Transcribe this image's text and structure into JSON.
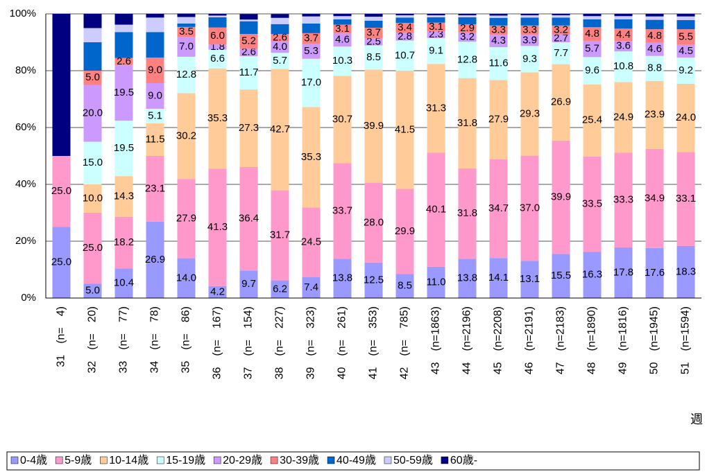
{
  "chart_data": {
    "type": "stacked_bar_100",
    "categories": [
      "31　(n=　4)",
      "32　(n=　20)",
      "33　(n=　77)",
      "34　(n=　78)",
      "35　(n=　86)",
      "36　(n=　167)",
      "37　(n=　154)",
      "38　(n=　227)",
      "39　(n=　323)",
      "40　(n=　261)",
      "41　(n=　353)",
      "42　(n=　785)",
      "43　(n=1863)",
      "44　(n=2196)",
      "45　(n=2208)",
      "46　(n=2191)",
      "47　(n=2183)",
      "48　(n=1890)",
      "49　(n=1816)",
      "50　(n=1945)",
      "51　(n=1594)"
    ],
    "x_label": "週",
    "ylim": [
      0,
      100
    ],
    "yticks": [
      {
        "value": 0,
        "label": "0%"
      },
      {
        "value": 20,
        "label": "20%"
      },
      {
        "value": 40,
        "label": "40%"
      },
      {
        "value": 60,
        "label": "60%"
      },
      {
        "value": 80,
        "label": "80%"
      },
      {
        "value": 100,
        "label": "100%"
      }
    ],
    "grid": true,
    "legend": "bottom",
    "series": [
      {
        "name": "0-4歳",
        "color": "#9999ff",
        "values": [
          25,
          5,
          10.4,
          26.9,
          14,
          4.2,
          9.7,
          6.2,
          7.4,
          13.8,
          12.5,
          8.5,
          11,
          13.8,
          14.1,
          13.1,
          15.5,
          16.3,
          17.8,
          17.6,
          18.3
        ],
        "value_labels": [
          "25.0",
          "5.0",
          "10.4",
          "26.9",
          "14.0",
          "4.2",
          "9.7",
          "6.2",
          "7.4",
          "13.8",
          "12.5",
          "8.5",
          "11.0",
          "13.8",
          "14.1",
          "13.1",
          "15.5",
          "16.3",
          "17.8",
          "17.6",
          "18.3"
        ]
      },
      {
        "name": "5-9歳",
        "color": "#ff99cc",
        "values": [
          25,
          25,
          18.2,
          23.1,
          27.9,
          41.3,
          36.4,
          31.7,
          24.5,
          33.7,
          28,
          29.9,
          40.1,
          31.8,
          34.7,
          37,
          39.9,
          33.5,
          33.3,
          34.9,
          33.1
        ],
        "value_labels": [
          "25.0",
          "25.0",
          "18.2",
          "23.1",
          "27.9",
          "41.3",
          "36.4",
          "31.7",
          "24.5",
          "33.7",
          "28.0",
          "29.9",
          "40.1",
          "31.8",
          "34.7",
          "37.0",
          "39.9",
          "33.5",
          "33.3",
          "34.9",
          "33.1"
        ]
      },
      {
        "name": "10-14歳",
        "color": "#ffcc99",
        "values": [
          0,
          10,
          14.3,
          11.5,
          30.2,
          35.3,
          27.3,
          42.7,
          35.3,
          30.7,
          39.9,
          41.5,
          31.3,
          31.8,
          27.9,
          29.3,
          26.9,
          25.4,
          24.9,
          23.9,
          24
        ],
        "value_labels": [
          null,
          "10.0",
          "14.3",
          "11.5",
          "30.2",
          "35.3",
          "27.3",
          "42.7",
          "35.3",
          "30.7",
          "39.9",
          "41.5",
          "31.3",
          "31.8",
          "27.9",
          "29.3",
          "26.9",
          "25.4",
          "24.9",
          "23.9",
          "24.0"
        ]
      },
      {
        "name": "15-19歳",
        "color": "#ccffff",
        "values": [
          0,
          15,
          19.5,
          5.1,
          12.8,
          6.6,
          11.7,
          5.7,
          17,
          10.3,
          8.5,
          10.7,
          9.1,
          12.8,
          11.6,
          9.3,
          7.7,
          9.6,
          10.8,
          8.8,
          9.2
        ],
        "value_labels": [
          null,
          "15.0",
          "19.5",
          "5.1",
          "12.8",
          "6.6",
          "11.7",
          "5.7",
          "17.0",
          "10.3",
          "8.5",
          "10.7",
          "9.1",
          "12.8",
          "11.6",
          "9.3",
          "7.7",
          "9.6",
          "10.8",
          "8.8",
          "9.2"
        ]
      },
      {
        "name": "20-29歳",
        "color": "#cc99ff",
        "values": [
          0,
          20,
          19.5,
          9,
          7,
          1.8,
          2.6,
          4,
          5.3,
          4.6,
          2.5,
          2.8,
          2.3,
          3.2,
          4.3,
          3.9,
          2.7,
          5.7,
          3.6,
          4.6,
          4.5
        ],
        "value_labels": [
          null,
          "20.0",
          "19.5",
          "9.0",
          "7.0",
          "1.8",
          "2.6",
          "4.0",
          "5.3",
          "4.6",
          "2.5",
          "2.8",
          "2.3",
          "3.2",
          "4.3",
          "3.9",
          "2.7",
          "5.7",
          "3.6",
          "4.6",
          "4.5"
        ]
      },
      {
        "name": "30-39歳",
        "color": "#ff8080",
        "values": [
          0,
          5,
          2.6,
          9,
          3.5,
          6,
          5.2,
          2.6,
          3.7,
          3.1,
          3.7,
          3.4,
          3.1,
          2.9,
          3.3,
          3.3,
          3.2,
          4.8,
          4.4,
          4.8,
          5.5
        ],
        "value_labels": [
          null,
          "5.0",
          "2.6",
          "9.0",
          "3.5",
          "6.0",
          "5.2",
          "2.6",
          "3.7",
          "3.1",
          "3.7",
          "3.4",
          "3.1",
          "2.9",
          "3.3",
          "3.3",
          "3.2",
          "4.8",
          "4.4",
          "4.8",
          "5.5"
        ]
      },
      {
        "name": "40-49歳",
        "color": "#0066cc",
        "values": [
          0,
          10,
          9.1,
          9,
          1.2,
          3.6,
          4.5,
          3.5,
          3.4,
          1.9,
          2.5,
          1.9,
          1.9,
          2.5,
          2.7,
          2.8,
          2.8,
          2.8,
          3.3,
          3.3,
          3.2
        ]
      },
      {
        "name": "50-59歳",
        "color": "#ccccff",
        "values": [
          0,
          5,
          2.6,
          5.1,
          2.3,
          0.6,
          0.6,
          2.2,
          2.5,
          1.1,
          1.4,
          0.8,
          0.7,
          0.7,
          0.8,
          0.8,
          0.8,
          1.1,
          1.1,
          1.2,
          1.3
        ]
      },
      {
        "name": "60歳-",
        "color": "#000080",
        "values": [
          50,
          5,
          3.8,
          1.3,
          1.2,
          0.6,
          1.9,
          1.3,
          0.9,
          0.8,
          1,
          0.5,
          0.5,
          0.5,
          0.6,
          0.5,
          0.5,
          0.8,
          0.8,
          0.9,
          0.9
        ]
      }
    ]
  }
}
